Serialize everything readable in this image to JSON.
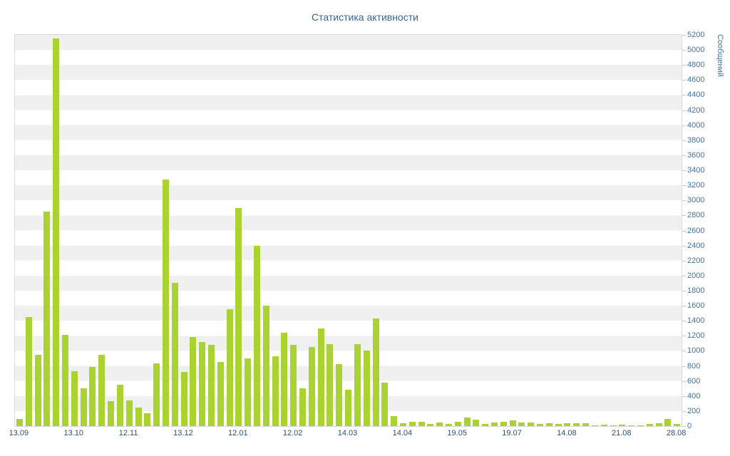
{
  "chart_data": {
    "type": "bar",
    "title": "Статистика активности",
    "xlabel": "",
    "ylabel": "Сообщений",
    "ylim": [
      0,
      5200
    ],
    "ytick_step": 200,
    "yticks": [
      0,
      200,
      400,
      600,
      800,
      1000,
      1200,
      1400,
      1600,
      1800,
      2000,
      2200,
      2400,
      2600,
      2800,
      3000,
      3200,
      3400,
      3600,
      3800,
      4000,
      4200,
      4400,
      4600,
      4800,
      5000,
      5200
    ],
    "x_labeled_ticks": [
      {
        "index": 0,
        "label": "13.09"
      },
      {
        "index": 6,
        "label": "13.10"
      },
      {
        "index": 12,
        "label": "12.11"
      },
      {
        "index": 18,
        "label": "13.12"
      },
      {
        "index": 24,
        "label": "12.01"
      },
      {
        "index": 30,
        "label": "12.02"
      },
      {
        "index": 36,
        "label": "14.03"
      },
      {
        "index": 42,
        "label": "14.04"
      },
      {
        "index": 48,
        "label": "19.05"
      },
      {
        "index": 54,
        "label": "19.07"
      },
      {
        "index": 60,
        "label": "14.08"
      },
      {
        "index": 66,
        "label": "21.08"
      },
      {
        "index": 72,
        "label": "28.08"
      }
    ],
    "values": [
      90,
      1450,
      950,
      2850,
      5150,
      1210,
      730,
      500,
      790,
      950,
      330,
      550,
      340,
      250,
      170,
      830,
      3280,
      1900,
      720,
      1180,
      1120,
      1080,
      850,
      1550,
      2900,
      900,
      2400,
      1600,
      930,
      1240,
      1080,
      500,
      1050,
      1300,
      1090,
      820,
      480,
      1090,
      1000,
      1430,
      580,
      130,
      35,
      55,
      60,
      30,
      45,
      30,
      60,
      110,
      85,
      30,
      45,
      60,
      80,
      45,
      50,
      30,
      40,
      30,
      40,
      40,
      35,
      12,
      20,
      12,
      18,
      8,
      12,
      25,
      40,
      95,
      30
    ],
    "bar_color": "#aad331",
    "grid": "horizontal-stripes-200",
    "legend": "none",
    "colors": {
      "title_text": "#3a6596",
      "y_tick_text": "#3c74a8",
      "x_tick_text": "#2e4f7a",
      "stripe_gray": "#f0f0f0",
      "plot_border": "#d9d9d9"
    }
  }
}
